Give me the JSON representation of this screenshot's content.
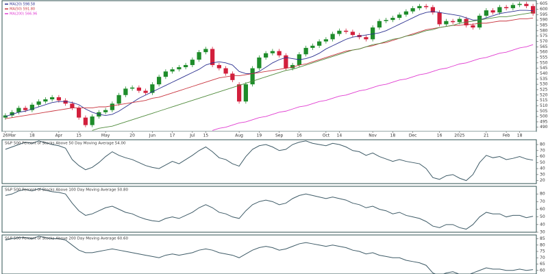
{
  "chart_data": [
    {
      "type": "candlestick",
      "categories": [
        "26",
        "Mar",
        null,
        null,
        "18",
        null,
        null,
        null,
        "Apr",
        null,
        null,
        "15",
        null,
        null,
        null,
        "May",
        null,
        null,
        null,
        "20",
        null,
        null,
        "Jun",
        null,
        null,
        "17",
        null,
        null,
        "Jul",
        null,
        "15",
        null,
        null,
        null,
        null,
        "Aug",
        null,
        null,
        "19",
        null,
        null,
        "Sep",
        null,
        null,
        "16",
        null,
        null,
        null,
        "Oct",
        null,
        "14",
        null,
        null,
        null,
        null,
        "Nov",
        null,
        null,
        "18",
        null,
        null,
        "Dec",
        null,
        null,
        null,
        "16",
        null,
        null,
        "2025",
        null,
        null,
        null,
        "21",
        null,
        null,
        "Feb",
        null,
        "18",
        null,
        null
      ],
      "open": [
        499,
        501,
        504,
        508,
        506,
        511,
        514,
        516,
        518,
        515,
        512,
        508,
        499,
        492,
        500,
        504,
        506,
        512,
        520,
        526,
        527,
        524,
        522,
        530,
        537,
        542,
        544,
        546,
        548,
        553,
        560,
        563,
        548,
        545,
        540,
        530,
        514,
        530,
        545,
        555,
        559,
        561,
        557,
        545,
        548,
        558,
        564,
        566,
        570,
        572,
        577,
        580,
        579,
        576,
        574,
        572,
        583,
        589,
        590,
        592,
        595,
        598,
        601,
        603,
        602,
        597,
        586,
        589,
        588,
        591,
        585,
        583,
        594,
        599,
        597,
        602,
        601,
        604,
        605,
        603
      ],
      "high": [
        503,
        506,
        510,
        510,
        513,
        516,
        518,
        520,
        520,
        517,
        514,
        510,
        501,
        502,
        506,
        508,
        514,
        522,
        528,
        529,
        529,
        526,
        532,
        539,
        544,
        546,
        548,
        550,
        555,
        562,
        565,
        565,
        550,
        547,
        542,
        532,
        532,
        547,
        557,
        561,
        563,
        563,
        559,
        550,
        560,
        566,
        568,
        572,
        574,
        579,
        582,
        582,
        581,
        578,
        576,
        585,
        591,
        592,
        594,
        597,
        600,
        603,
        605,
        605,
        604,
        599,
        591,
        591,
        593,
        593,
        587,
        596,
        601,
        601,
        604,
        604,
        606,
        607,
        607,
        605
      ],
      "low": [
        497,
        499,
        502,
        504,
        504,
        509,
        512,
        514,
        513,
        510,
        506,
        497,
        490,
        490,
        498,
        502,
        504,
        510,
        518,
        524,
        522,
        520,
        520,
        528,
        535,
        540,
        542,
        544,
        546,
        551,
        558,
        546,
        543,
        538,
        532,
        512,
        512,
        528,
        543,
        553,
        557,
        555,
        543,
        543,
        546,
        556,
        562,
        564,
        568,
        570,
        575,
        577,
        574,
        572,
        570,
        570,
        581,
        587,
        588,
        590,
        593,
        596,
        599,
        600,
        595,
        584,
        584,
        586,
        586,
        583,
        581,
        581,
        592,
        595,
        595,
        599,
        599,
        602,
        601,
        594
      ],
      "close": [
        501,
        504,
        508,
        506,
        511,
        514,
        516,
        518,
        515,
        512,
        508,
        499,
        492,
        500,
        504,
        506,
        512,
        520,
        526,
        527,
        524,
        522,
        530,
        537,
        542,
        544,
        546,
        548,
        553,
        560,
        563,
        548,
        545,
        540,
        534,
        514,
        530,
        545,
        555,
        559,
        561,
        557,
        545,
        548,
        558,
        564,
        566,
        570,
        572,
        577,
        580,
        579,
        576,
        574,
        572,
        583,
        589,
        590,
        592,
        595,
        598,
        601,
        603,
        602,
        597,
        586,
        589,
        588,
        591,
        585,
        583,
        594,
        599,
        597,
        602,
        601,
        604,
        605,
        603,
        596
      ],
      "up_color": "#1e8c2a",
      "down_color": "#d21f3c",
      "series": [
        {
          "name": "MA(20) 598.58",
          "color": "#2a2f8f",
          "values": [
            500,
            502,
            504,
            505,
            507,
            509,
            511,
            513,
            514,
            514,
            513,
            511,
            507,
            504,
            502,
            501,
            502,
            505,
            509,
            513,
            517,
            520,
            523,
            526,
            529,
            532,
            535,
            538,
            541,
            544,
            548,
            550,
            551,
            550,
            548,
            542,
            540,
            540,
            542,
            546,
            550,
            553,
            555,
            554,
            553,
            554,
            556,
            559,
            563,
            566,
            569,
            572,
            574,
            575,
            576,
            577,
            578,
            580,
            583,
            586,
            589,
            592,
            595,
            597,
            598,
            597,
            596,
            595,
            594,
            592,
            590,
            590,
            592,
            594,
            596,
            597,
            598,
            599,
            599,
            598.6
          ]
        },
        {
          "name": "MA(50) 591.80",
          "color": "#c8323c",
          "values": [
            498,
            499,
            500,
            501,
            502,
            503,
            504,
            505,
            506,
            507,
            508,
            508,
            508,
            508,
            509,
            509,
            510,
            511,
            512,
            513,
            514,
            515,
            517,
            518,
            520,
            522,
            524,
            526,
            528,
            530,
            532,
            534,
            536,
            537,
            538,
            538,
            539,
            540,
            541,
            542,
            543,
            544,
            545,
            546,
            548,
            549,
            551,
            553,
            555,
            557,
            559,
            561,
            562,
            563,
            565,
            566,
            568,
            569,
            571,
            573,
            575,
            577,
            579,
            581,
            582,
            583,
            584,
            585,
            585,
            586,
            586,
            587,
            587,
            588,
            589,
            589,
            590,
            591,
            591,
            591.8
          ]
        },
        {
          "color": "#4e8a3a",
          "values": [
            null,
            null,
            null,
            null,
            null,
            null,
            null,
            null,
            null,
            null,
            null,
            null,
            null,
            487,
            489,
            490,
            491,
            493,
            495,
            497,
            499,
            501,
            503,
            505,
            507,
            509,
            511,
            513,
            515,
            517,
            519,
            521,
            523,
            525,
            527,
            529,
            531,
            533,
            535,
            537,
            539,
            541,
            543,
            544,
            546,
            548,
            550,
            552,
            554,
            556,
            558,
            560,
            562,
            563,
            565,
            567,
            568,
            570,
            572,
            573,
            575,
            576,
            578,
            580,
            581,
            583,
            584,
            585,
            587,
            588,
            589,
            590,
            591,
            592,
            593,
            593,
            594,
            595,
            596,
            597
          ]
        },
        {
          "name": "MA(200) 566.96",
          "color": "#e03ad0",
          "values": [
            null,
            null,
            null,
            null,
            null,
            null,
            null,
            null,
            null,
            null,
            null,
            null,
            null,
            null,
            null,
            null,
            null,
            null,
            null,
            null,
            null,
            null,
            null,
            null,
            null,
            null,
            null,
            null,
            null,
            null,
            null,
            487,
            489,
            490,
            492,
            494,
            495,
            497,
            499,
            500,
            502,
            504,
            505,
            507,
            509,
            510,
            512,
            514,
            515,
            517,
            519,
            520,
            522,
            524,
            525,
            527,
            529,
            530,
            532,
            534,
            535,
            537,
            539,
            540,
            542,
            544,
            545,
            547,
            549,
            550,
            552,
            554,
            555,
            557,
            559,
            560,
            562,
            564,
            565,
            567
          ]
        }
      ],
      "ylim": [
        486,
        608
      ],
      "yticks": [
        490,
        495,
        500,
        505,
        510,
        515,
        520,
        525,
        530,
        535,
        540,
        545,
        550,
        555,
        560,
        565,
        570,
        575,
        580,
        585,
        590,
        595,
        600,
        605
      ],
      "grid": false
    },
    {
      "type": "line",
      "title": "S&P 500 Percent of Stocks Above 50 Day Moving Average 54.00",
      "color": "#3d5a66",
      "values": [
        72,
        76,
        80,
        84,
        82,
        86,
        83,
        80,
        78,
        74,
        55,
        45,
        38,
        42,
        50,
        60,
        68,
        62,
        58,
        55,
        50,
        45,
        42,
        40,
        46,
        52,
        48,
        55,
        62,
        70,
        76,
        68,
        58,
        55,
        48,
        44,
        60,
        72,
        78,
        80,
        76,
        70,
        72,
        80,
        84,
        86,
        82,
        80,
        78,
        82,
        80,
        76,
        70,
        68,
        62,
        66,
        60,
        56,
        52,
        55,
        52,
        50,
        48,
        40,
        25,
        22,
        28,
        30,
        24,
        20,
        30,
        50,
        62,
        58,
        60,
        55,
        57,
        60,
        56,
        54
      ],
      "ylim": [
        15,
        88
      ],
      "yticks": [
        20,
        30,
        40,
        50,
        60,
        70,
        80
      ],
      "grid": false
    },
    {
      "type": "line",
      "title": "S&P 500 Percent of Stocks Above 100 Day Moving Average 50.80",
      "color": "#3d5a66",
      "values": [
        78,
        80,
        84,
        86,
        84,
        87,
        85,
        83,
        82,
        80,
        68,
        58,
        52,
        54,
        58,
        62,
        64,
        60,
        56,
        54,
        50,
        47,
        45,
        44,
        48,
        50,
        48,
        52,
        56,
        62,
        66,
        62,
        56,
        54,
        50,
        48,
        58,
        66,
        70,
        72,
        70,
        66,
        68,
        74,
        78,
        80,
        78,
        76,
        74,
        76,
        74,
        72,
        68,
        66,
        62,
        64,
        60,
        58,
        54,
        56,
        52,
        50,
        48,
        44,
        38,
        36,
        40,
        40,
        36,
        34,
        40,
        50,
        56,
        54,
        54,
        50,
        52,
        52,
        49,
        50.8
      ],
      "ylim": [
        30,
        90
      ],
      "yticks": [
        30,
        40,
        50,
        60,
        70,
        80
      ],
      "grid": false
    },
    {
      "type": "line",
      "title": "S&P 500 Percent of Stocks Above 200 Day Moving Average 60.60",
      "color": "#3d5a66",
      "values": [
        84,
        85,
        86,
        86,
        85,
        87,
        86,
        85,
        85,
        84,
        80,
        76,
        74,
        74,
        75,
        76,
        77,
        76,
        75,
        74,
        73,
        72,
        71,
        70,
        72,
        73,
        72,
        73,
        74,
        76,
        77,
        76,
        74,
        73,
        72,
        70,
        73,
        76,
        78,
        79,
        78,
        76,
        77,
        79,
        81,
        82,
        81,
        80,
        79,
        80,
        79,
        78,
        76,
        75,
        73,
        74,
        72,
        71,
        70,
        70,
        68,
        67,
        66,
        64,
        58,
        56,
        58,
        59,
        57,
        56,
        58,
        60,
        62,
        61,
        61,
        60,
        60,
        61,
        60,
        60.6
      ],
      "ylim": [
        55,
        88
      ],
      "yticks": [
        60,
        65,
        70,
        75,
        80,
        85
      ],
      "grid": false
    }
  ]
}
